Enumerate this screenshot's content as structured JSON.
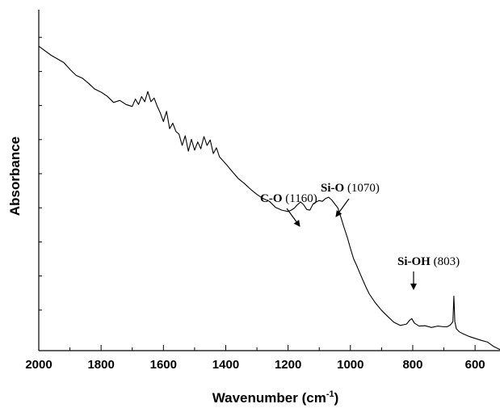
{
  "chart_data": {
    "type": "line",
    "xlabel": "Wavenumber (cm",
    "xlabel_sup": "-1",
    "xlabel_close": ")",
    "ylabel": "Absorbance",
    "xlim": [
      2000,
      520
    ],
    "ylim": [
      0,
      1
    ],
    "x_ticks": [
      2000,
      1800,
      1600,
      1400,
      1200,
      1000,
      800,
      600
    ],
    "y_tick_labels": "none",
    "grid": false,
    "series": [
      {
        "x": [
          2000,
          1960,
          1920,
          1900,
          1880,
          1860,
          1840,
          1820,
          1800,
          1780,
          1760,
          1740,
          1720,
          1700,
          1690,
          1680,
          1670,
          1660,
          1650,
          1640,
          1630,
          1620,
          1610,
          1600,
          1590,
          1580,
          1570,
          1560,
          1550,
          1540,
          1530,
          1520,
          1510,
          1500,
          1490,
          1480,
          1470,
          1460,
          1450,
          1440,
          1430,
          1420,
          1400,
          1380,
          1360,
          1340,
          1320,
          1300,
          1280,
          1260,
          1240,
          1220,
          1200,
          1190,
          1180,
          1170,
          1160,
          1150,
          1140,
          1130,
          1120,
          1110,
          1100,
          1090,
          1080,
          1070,
          1060,
          1050,
          1040,
          1030,
          1020,
          1010,
          1000,
          990,
          980,
          970,
          960,
          950,
          940,
          920,
          900,
          880,
          860,
          840,
          820,
          810,
          803,
          795,
          780,
          760,
          740,
          720,
          700,
          690,
          680,
          675,
          671,
          668,
          665,
          660,
          650,
          640,
          620,
          600,
          580,
          560,
          540,
          520
        ],
        "y": [
          0.893,
          0.866,
          0.845,
          0.825,
          0.807,
          0.799,
          0.784,
          0.767,
          0.758,
          0.746,
          0.728,
          0.734,
          0.722,
          0.716,
          0.738,
          0.722,
          0.745,
          0.73,
          0.76,
          0.73,
          0.741,
          0.717,
          0.697,
          0.672,
          0.702,
          0.651,
          0.667,
          0.643,
          0.635,
          0.602,
          0.63,
          0.585,
          0.62,
          0.588,
          0.612,
          0.592,
          0.628,
          0.602,
          0.618,
          0.578,
          0.595,
          0.568,
          0.548,
          0.526,
          0.505,
          0.49,
          0.473,
          0.458,
          0.446,
          0.438,
          0.42,
          0.412,
          0.408,
          0.412,
          0.418,
          0.428,
          0.436,
          0.428,
          0.414,
          0.412,
          0.43,
          0.436,
          0.44,
          0.438,
          0.446,
          0.45,
          0.442,
          0.43,
          0.418,
          0.39,
          0.36,
          0.332,
          0.3,
          0.27,
          0.25,
          0.228,
          0.207,
          0.186,
          0.167,
          0.14,
          0.118,
          0.1,
          0.083,
          0.074,
          0.078,
          0.089,
          0.094,
          0.081,
          0.072,
          0.073,
          0.068,
          0.072,
          0.07,
          0.07,
          0.075,
          0.08,
          0.085,
          0.16,
          0.085,
          0.064,
          0.055,
          0.05,
          0.042,
          0.036,
          0.03,
          0.025,
          0.012,
          0.003
        ]
      }
    ],
    "annotations": [
      {
        "bold": "C-O",
        "plain": " (1160)",
        "x": 1160
      },
      {
        "bold": "Si-O",
        "plain": " (1070)",
        "x": 1070
      },
      {
        "bold": "Si-OH",
        "plain": " (803)",
        "x": 803
      }
    ]
  }
}
